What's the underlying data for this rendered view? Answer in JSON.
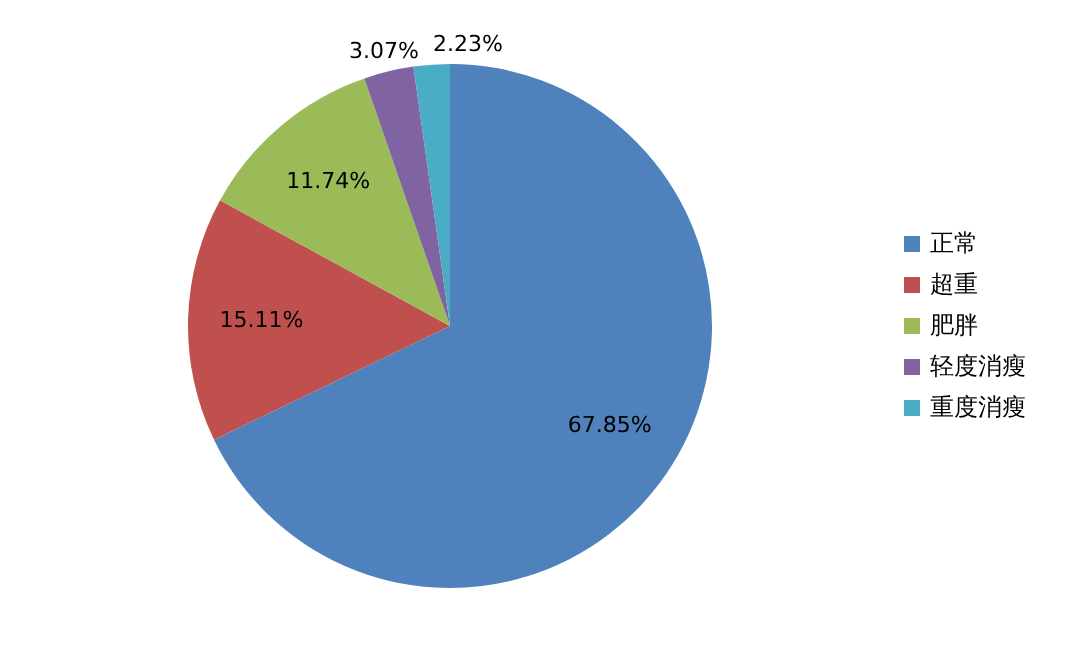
{
  "chart_data": {
    "type": "pie",
    "categories": [
      "正常",
      "超重",
      "肥胖",
      "轻度消瘦",
      "重度消瘦"
    ],
    "values": [
      67.85,
      15.11,
      11.74,
      3.07,
      2.23
    ],
    "colors": [
      "#4f81bd",
      "#c0504d",
      "#9bbb59",
      "#8064a2",
      "#4bacc6"
    ],
    "value_labels": [
      "67.85%",
      "15.11%",
      "11.74%",
      "3.07%",
      "2.23%"
    ],
    "legend": "right"
  }
}
